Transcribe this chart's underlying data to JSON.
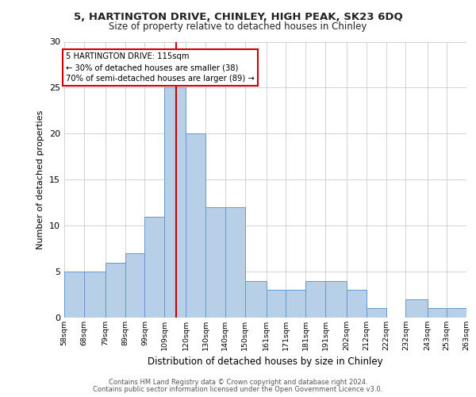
{
  "title_line1": "5, HARTINGTON DRIVE, CHINLEY, HIGH PEAK, SK23 6DQ",
  "title_line2": "Size of property relative to detached houses in Chinley",
  "xlabel": "Distribution of detached houses by size in Chinley",
  "ylabel": "Number of detached properties",
  "bin_edges": [
    58,
    68,
    79,
    89,
    99,
    109,
    120,
    130,
    140,
    150,
    161,
    171,
    181,
    191,
    202,
    212,
    222,
    232,
    243,
    253,
    263
  ],
  "bin_labels": [
    "58sqm",
    "68sqm",
    "79sqm",
    "89sqm",
    "99sqm",
    "109sqm",
    "120sqm",
    "130sqm",
    "140sqm",
    "150sqm",
    "161sqm",
    "171sqm",
    "181sqm",
    "191sqm",
    "202sqm",
    "212sqm",
    "222sqm",
    "232sqm",
    "243sqm",
    "253sqm",
    "263sqm"
  ],
  "counts": [
    5,
    5,
    6,
    7,
    11,
    25,
    20,
    12,
    12,
    4,
    3,
    3,
    4,
    4,
    3,
    1,
    0,
    2,
    1,
    1
  ],
  "bar_color": "#b8cfe8",
  "bar_edge_color": "#6699cc",
  "property_size": 115,
  "vline_color": "#cc0000",
  "annotation_line1": "5 HARTINGTON DRIVE: 115sqm",
  "annotation_line2": "← 30% of detached houses are smaller (38)",
  "annotation_line3": "70% of semi-detached houses are larger (89) →",
  "annotation_box_color": "#ffffff",
  "annotation_box_edge": "#cc0000",
  "ylim": [
    0,
    30
  ],
  "yticks": [
    0,
    5,
    10,
    15,
    20,
    25,
    30
  ],
  "footer_line1": "Contains HM Land Registry data © Crown copyright and database right 2024.",
  "footer_line2": "Contains public sector information licensed under the Open Government Licence v3.0.",
  "bg_color": "#ffffff",
  "plot_bg_color": "#ffffff",
  "grid_color": "#cccccc"
}
